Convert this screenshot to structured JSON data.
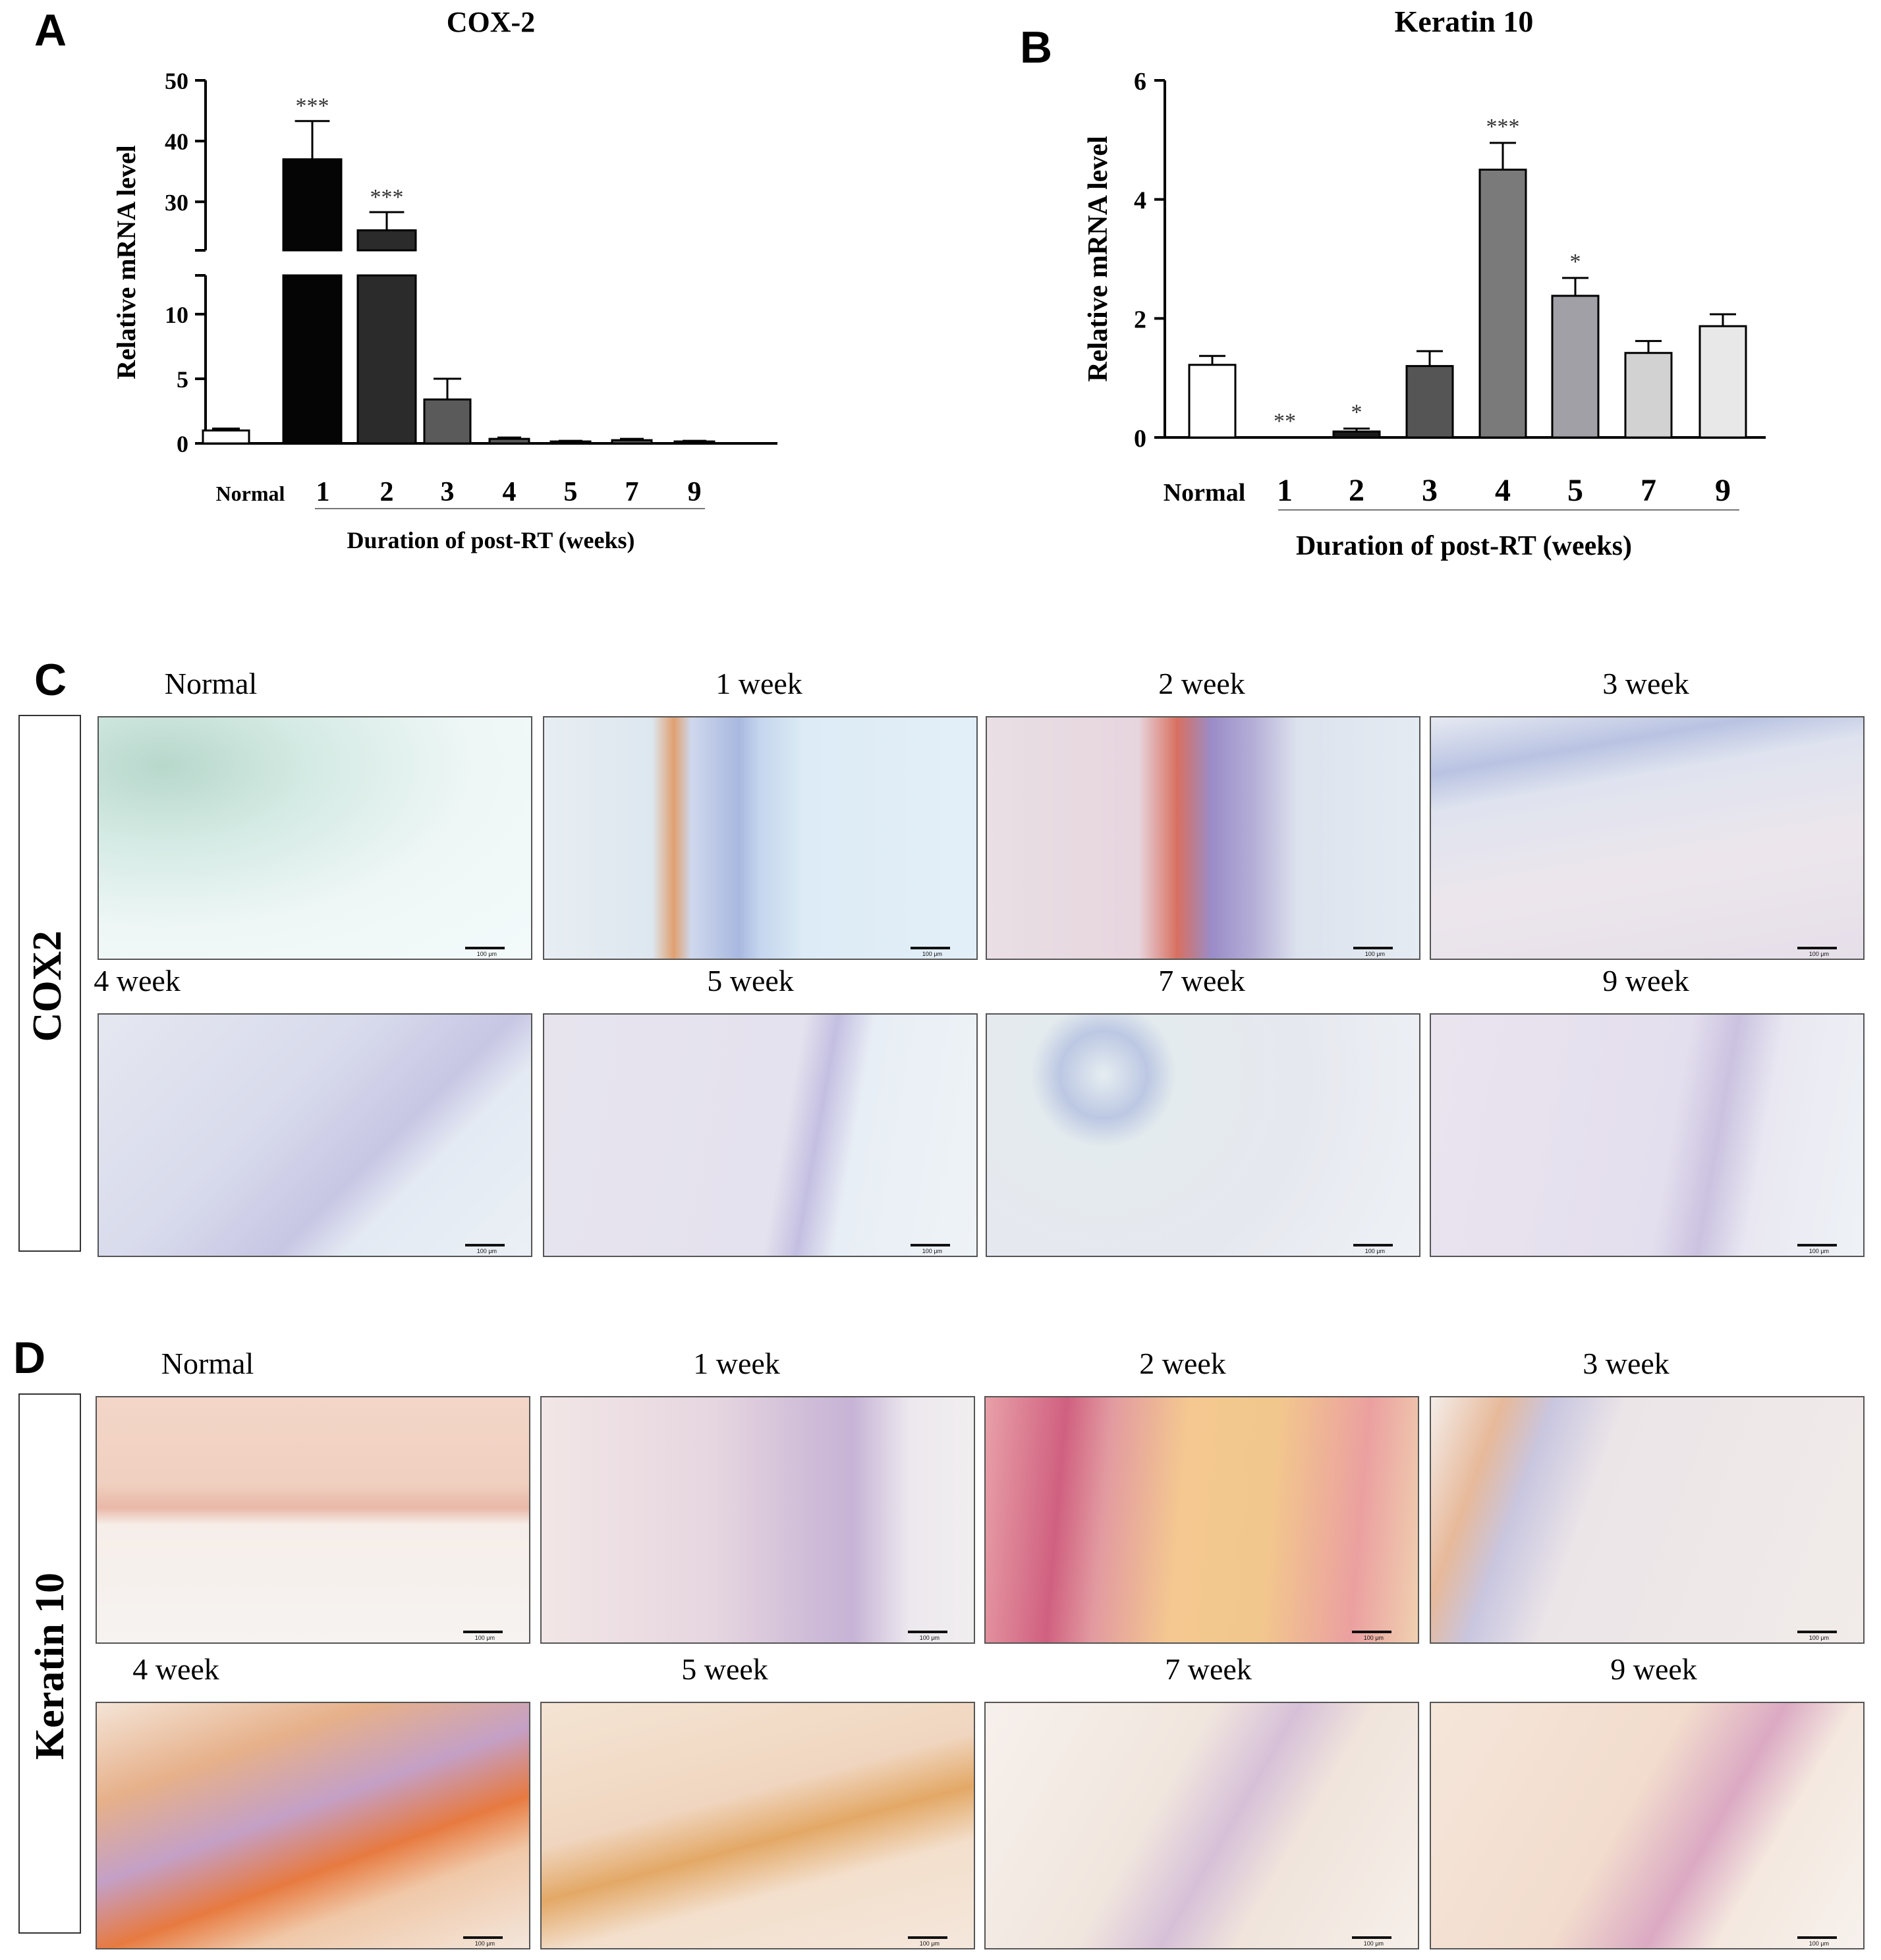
{
  "panels": {
    "a": {
      "letter": "A"
    },
    "b": {
      "letter": "B"
    },
    "c": {
      "letter": "C",
      "row_label": "COX2",
      "images": [
        {
          "title": "Normal"
        },
        {
          "title": "1 week"
        },
        {
          "title": "2 week"
        },
        {
          "title": "3 week"
        },
        {
          "title": "4 week"
        },
        {
          "title": "5 week"
        },
        {
          "title": "7 week"
        },
        {
          "title": "9 week"
        }
      ]
    },
    "d": {
      "letter": "D",
      "row_label": "Keratin 10",
      "images": [
        {
          "title": "Normal"
        },
        {
          "title": "1 week"
        },
        {
          "title": "2 week"
        },
        {
          "title": "3 week"
        },
        {
          "title": "4 week"
        },
        {
          "title": "5 week"
        },
        {
          "title": "7 week"
        },
        {
          "title": "9 week"
        }
      ]
    }
  },
  "scale_bar_label": "100 μm",
  "chart_data": [
    {
      "type": "bar",
      "title": "COX-2",
      "ylabel": "Relative mRNA level",
      "xlabel": "Duration of post-RT (weeks)",
      "categories": [
        "Normal",
        "1",
        "2",
        "3",
        "4",
        "5",
        "7",
        "9"
      ],
      "values": [
        1.0,
        37.0,
        25.3,
        3.4,
        0.35,
        0.15,
        0.25,
        0.15
      ],
      "errors": [
        0.15,
        6.3,
        3.0,
        1.6,
        0.1,
        0.05,
        0.1,
        0.05
      ],
      "significance": [
        "",
        "***",
        "***",
        "",
        "",
        "",
        "",
        ""
      ],
      "colors": [
        "#ffffff",
        "#050505",
        "#2b2b2b",
        "#5a5a5a",
        "#5a5a5a",
        "#5a5a5a",
        "#5a5a5a",
        "#5a5a5a"
      ],
      "axis_break": {
        "lower_range": [
          0,
          13
        ],
        "upper_range": [
          22,
          50
        ]
      },
      "yticks": [
        0,
        5,
        10,
        30,
        40,
        50
      ],
      "ytick_labels": [
        "0",
        "5",
        "10",
        "30",
        "40",
        "50"
      ]
    },
    {
      "type": "bar",
      "title": "Keratin 10",
      "ylabel": "Relative mRNA level",
      "xlabel": "Duration of post-RT (weeks)",
      "categories": [
        "Normal",
        "1",
        "2",
        "3",
        "4",
        "5",
        "7",
        "9"
      ],
      "values": [
        1.22,
        0.0,
        0.1,
        1.2,
        4.5,
        2.38,
        1.42,
        1.87
      ],
      "errors": [
        0.15,
        0.0,
        0.05,
        0.25,
        0.45,
        0.3,
        0.2,
        0.2
      ],
      "significance": [
        "",
        "**",
        "*",
        "",
        "***",
        "*",
        "",
        ""
      ],
      "colors": [
        "#ffffff",
        "#1a1a1a",
        "#1a1a1a",
        "#555555",
        "#7a7a7a",
        "#a0a0a6",
        "#d2d2d2",
        "#e8e8e8"
      ],
      "ylim": [
        0,
        6
      ],
      "yticks": [
        0,
        2,
        4,
        6
      ],
      "ytick_labels": [
        "0",
        "2",
        "4",
        "6"
      ]
    }
  ]
}
